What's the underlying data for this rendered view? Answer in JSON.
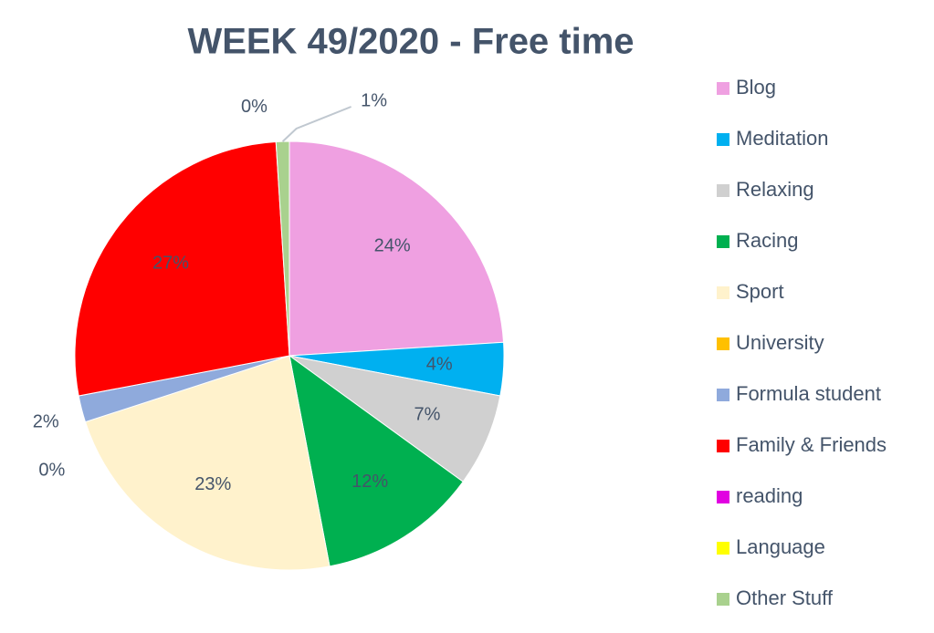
{
  "chart_data": {
    "type": "pie",
    "title": "WEEK 49/2020 - Free time",
    "categories": [
      "Blog",
      "Meditation",
      "Relaxing",
      "Racing",
      "Sport",
      "University",
      "Formula student",
      "Family & Friends",
      "reading",
      "Language",
      "Other Stuff"
    ],
    "values": [
      24,
      4,
      7,
      12,
      23,
      0,
      2,
      27,
      0,
      0,
      1
    ],
    "value_labels": [
      "24%",
      "4%",
      "7%",
      "12%",
      "23%",
      "0%",
      "2%",
      "27%",
      "0%",
      null,
      "1%"
    ],
    "colors": [
      "#efa0e1",
      "#00b0f0",
      "#d0d0d0",
      "#00b050",
      "#fff2cc",
      "#ffc000",
      "#8faadc",
      "#ff0000",
      "#e100e1",
      "#ffff00",
      "#a9d18e"
    ],
    "legend": "right"
  }
}
